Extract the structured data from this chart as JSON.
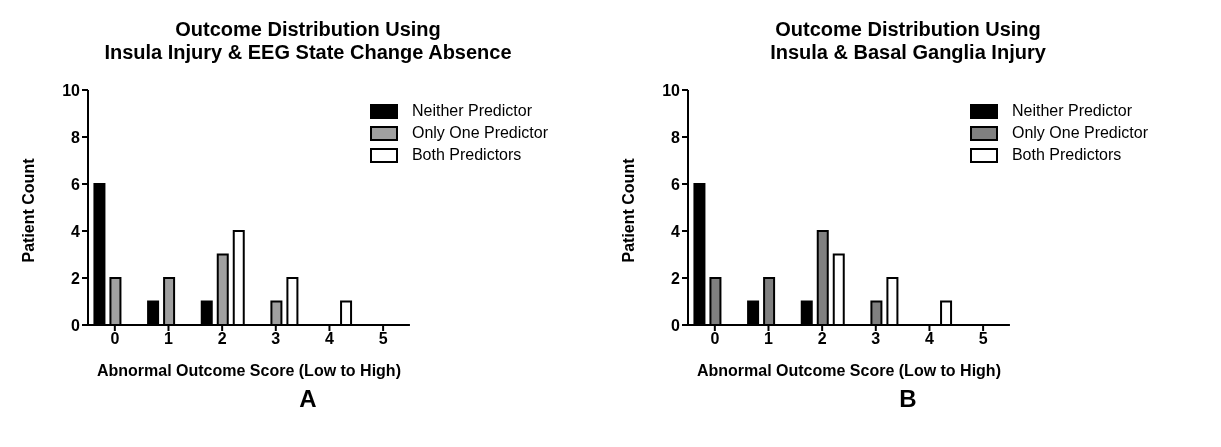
{
  "chart_data": [
    {
      "type": "bar",
      "title": "Outcome Distribution Using\nInsula Injury & EEG State Change Absence",
      "xlabel": "Abnormal Outcome Score (Low to High)",
      "ylabel": "Patient Count",
      "categories": [
        "0",
        "1",
        "2",
        "3",
        "4",
        "5"
      ],
      "series": [
        {
          "name": "Neither Predictor",
          "color": "#000000",
          "values": [
            6,
            1,
            1,
            0,
            0,
            0
          ]
        },
        {
          "name": "Only One Predictor",
          "color": "#a0a0a0",
          "values": [
            2,
            2,
            3,
            1,
            0,
            0
          ]
        },
        {
          "name": "Both Predictors",
          "color": "#ffffff",
          "values": [
            0,
            0,
            4,
            2,
            1,
            0
          ]
        }
      ],
      "ylim": [
        0,
        10
      ],
      "yticks": [
        0,
        2,
        4,
        6,
        8,
        10
      ],
      "grid": false,
      "legend": "top right",
      "annotations": [
        "A"
      ]
    },
    {
      "type": "bar",
      "title": "Outcome Distribution Using\nInsula & Basal Ganglia Injury",
      "xlabel": "Abnormal Outcome Score (Low to High)",
      "ylabel": "Patient Count",
      "categories": [
        "0",
        "1",
        "2",
        "3",
        "4",
        "5"
      ],
      "series": [
        {
          "name": "Neither Predictor",
          "color": "#000000",
          "values": [
            6,
            1,
            1,
            0,
            0,
            0
          ]
        },
        {
          "name": "Only One Predictor",
          "color": "#808080",
          "values": [
            2,
            2,
            4,
            1,
            0,
            0
          ]
        },
        {
          "name": "Both Predictors",
          "color": "#ffffff",
          "values": [
            0,
            0,
            3,
            2,
            1,
            0
          ]
        }
      ],
      "ylim": [
        0,
        10
      ],
      "yticks": [
        0,
        2,
        4,
        6,
        8,
        10
      ],
      "grid": false,
      "legend": "top right",
      "annotations": [
        "B"
      ]
    }
  ]
}
